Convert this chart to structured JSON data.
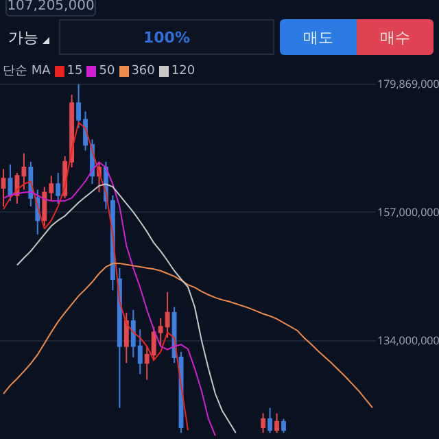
{
  "chart_data": {
    "type": "candlestick",
    "annotations": [
      "107,205,000",
      "가능",
      "100%",
      "매도",
      "매수"
    ],
    "legend_title": "단순 MA",
    "categories": [
      null,
      null,
      null,
      null,
      null,
      null,
      null,
      null,
      null,
      null,
      null,
      null,
      null,
      null,
      null,
      null,
      null,
      null,
      null,
      null,
      null,
      null,
      null,
      null,
      null,
      null,
      null,
      null,
      null,
      null,
      null,
      null,
      null,
      null,
      null,
      null,
      null,
      null,
      null,
      null,
      null,
      null,
      null,
      null,
      null,
      null,
      null,
      null,
      null,
      null,
      null,
      null,
      null,
      null,
      null
    ],
    "ohlc": [
      [
        161300000,
        164700000,
        158000000,
        163000000
      ],
      [
        163000000,
        165500000,
        159000000,
        160000000
      ],
      [
        160000000,
        164000000,
        158500000,
        163500000
      ],
      [
        163500000,
        167500000,
        161000000,
        165000000
      ],
      [
        165000000,
        166000000,
        158000000,
        159500000
      ],
      [
        159500000,
        161000000,
        153000000,
        155500000
      ],
      [
        155500000,
        161500000,
        154500000,
        160500000
      ],
      [
        160500000,
        163500000,
        159000000,
        162000000
      ],
      [
        162000000,
        164000000,
        158500000,
        160000000
      ],
      [
        160000000,
        167000000,
        159500000,
        166000000
      ],
      [
        166000000,
        178000000,
        165000000,
        176500000
      ],
      [
        176500000,
        179869000,
        172000000,
        173500000
      ],
      [
        173500000,
        175000000,
        168000000,
        169000000
      ],
      [
        169000000,
        170000000,
        162000000,
        163500000
      ],
      [
        163500000,
        166000000,
        160500000,
        165000000
      ],
      [
        165000000,
        166000000,
        157500000,
        159000000
      ],
      [
        159000000,
        160000000,
        143000000,
        145000000
      ],
      [
        145000000,
        147000000,
        122000000,
        133000000
      ],
      [
        133000000,
        139000000,
        130000000,
        137500000
      ],
      [
        137500000,
        139500000,
        131000000,
        133000000
      ],
      [
        133000000,
        136000000,
        128000000,
        130000000
      ],
      [
        130000000,
        133000000,
        127000000,
        131500000
      ],
      [
        131500000,
        136500000,
        130500000,
        135500000
      ],
      [
        135500000,
        138000000,
        133000000,
        136500000
      ],
      [
        136500000,
        142700000,
        134500000,
        139000000
      ],
      [
        139000000,
        140000000,
        130000000,
        131000000
      ],
      [
        131000000,
        132000000,
        117500000,
        118500000
      ],
      null,
      null,
      null,
      null,
      null,
      null,
      null,
      null,
      null,
      null,
      null,
      [
        118500000,
        121000000,
        117500000,
        120000000
      ],
      [
        120000000,
        122000000,
        117500000,
        118000000
      ],
      [
        118000000,
        121000000,
        117500000,
        119500000
      ],
      [
        119500000,
        120000000,
        117500000,
        118000000
      ],
      null,
      null,
      null,
      null,
      null,
      null,
      null,
      null,
      null,
      null,
      null,
      null,
      null
    ],
    "colors": [
      "#e5484d",
      "#3d7fe0",
      "#e5484d",
      "#e5484d",
      "#3d7fe0",
      "#3d7fe0",
      "#e5484d",
      "#e5484d",
      "#3d7fe0",
      "#e5484d",
      "#e5484d",
      "#3d7fe0",
      "#3d7fe0",
      "#3d7fe0",
      "#e5484d",
      "#3d7fe0",
      "#3d7fe0",
      "#3d7fe0",
      "#e5484d",
      "#3d7fe0",
      "#3d7fe0",
      "#e5484d",
      "#e5484d",
      "#e5484d",
      "#e5484d",
      "#3d7fe0",
      "#3d7fe0",
      null,
      null,
      null,
      null,
      null,
      null,
      null,
      null,
      null,
      null,
      null,
      "#e5484d",
      "#3d7fe0",
      "#e5484d",
      "#3d7fe0",
      null,
      null,
      null,
      null,
      null,
      null,
      null,
      null,
      null,
      null,
      null,
      null,
      null
    ],
    "series": [
      {
        "type": "line",
        "name": "15",
        "color": "#e8261f",
        "values": [
          157500000,
          159500000,
          161000000,
          162000000,
          162500000,
          158000000,
          154000000,
          155500000,
          158000000,
          161500000,
          168000000,
          173000000,
          172000000,
          168000000,
          164000000,
          160500000,
          153000000,
          141000000,
          137000000,
          135500000,
          134500000,
          133000000,
          130500000,
          132000000,
          135500000,
          134500000,
          126000000,
          118000000,
          null,
          null,
          null,
          null,
          null,
          null,
          null,
          null,
          null,
          null,
          null,
          null,
          null,
          null,
          null,
          null,
          null,
          null,
          null,
          null,
          null,
          null,
          null,
          null,
          null,
          null,
          null
        ]
      },
      {
        "type": "line",
        "name": "50",
        "color": "#d21fd2",
        "values": [
          159500000,
          160000000,
          160300000,
          160500000,
          160600000,
          160000000,
          159300000,
          159000000,
          159000000,
          159000000,
          159500000,
          161000000,
          162500000,
          164500000,
          165900000,
          165000000,
          162000000,
          158000000,
          151000000,
          147000000,
          143500000,
          139500000,
          136000000,
          133000000,
          132400000,
          133000000,
          133300000,
          132500000,
          129000000,
          125000000,
          120000000,
          117000000,
          null,
          null,
          null,
          null,
          null,
          null,
          null,
          null,
          null,
          null,
          null,
          null,
          null,
          null,
          null,
          null,
          null,
          null,
          null,
          null,
          null,
          null,
          null
        ]
      },
      {
        "type": "line",
        "name": "360",
        "color": "#f08a4b",
        "values": [
          124500000,
          126000000,
          127200000,
          128500000,
          129900000,
          131500000,
          133500000,
          135500000,
          137400000,
          139000000,
          140500000,
          142000000,
          143200000,
          144500000,
          146000000,
          147200000,
          147800000,
          147800000,
          147600000,
          147400000,
          147200000,
          147000000,
          146800000,
          146500000,
          146000000,
          145500000,
          144800000,
          144000000,
          143500000,
          142800000,
          142200000,
          141700000,
          141300000,
          141000000,
          140600000,
          140200000,
          139800000,
          139300000,
          138800000,
          138400000,
          137900000,
          137200000,
          136500000,
          135800000,
          134500000,
          133400000,
          132200000,
          131100000,
          130000000,
          128800000,
          127600000,
          126300000,
          125000000,
          123500000,
          122000000
        ]
      },
      {
        "type": "line",
        "name": "120",
        "color": "#c8c8c8",
        "values": [
          null,
          null,
          147500000,
          148800000,
          150000000,
          151500000,
          153000000,
          154500000,
          155500000,
          156300000,
          157500000,
          158700000,
          159700000,
          160700000,
          161700000,
          162000000,
          161500000,
          160000000,
          158500000,
          157000000,
          155300000,
          153500000,
          151500000,
          150000000,
          148300000,
          146500000,
          145000000,
          143600000,
          140000000,
          134000000,
          129000000,
          124500000,
          121500000,
          119500000,
          117500000,
          null,
          null,
          null,
          null,
          null,
          null,
          null,
          null,
          null,
          null,
          null,
          null,
          null,
          null,
          null,
          null,
          null,
          null,
          null,
          null
        ]
      }
    ],
    "ylim": [
      116900000,
      180200000
    ],
    "yticks": [
      {
        "value": 134000000,
        "label": "134,000,000"
      },
      {
        "value": 157000000,
        "label": "157,000,000"
      },
      {
        "value": 179869000,
        "label": "179,869,000"
      }
    ],
    "tick_labels": "y",
    "grid": "y",
    "legend": "top left"
  }
}
